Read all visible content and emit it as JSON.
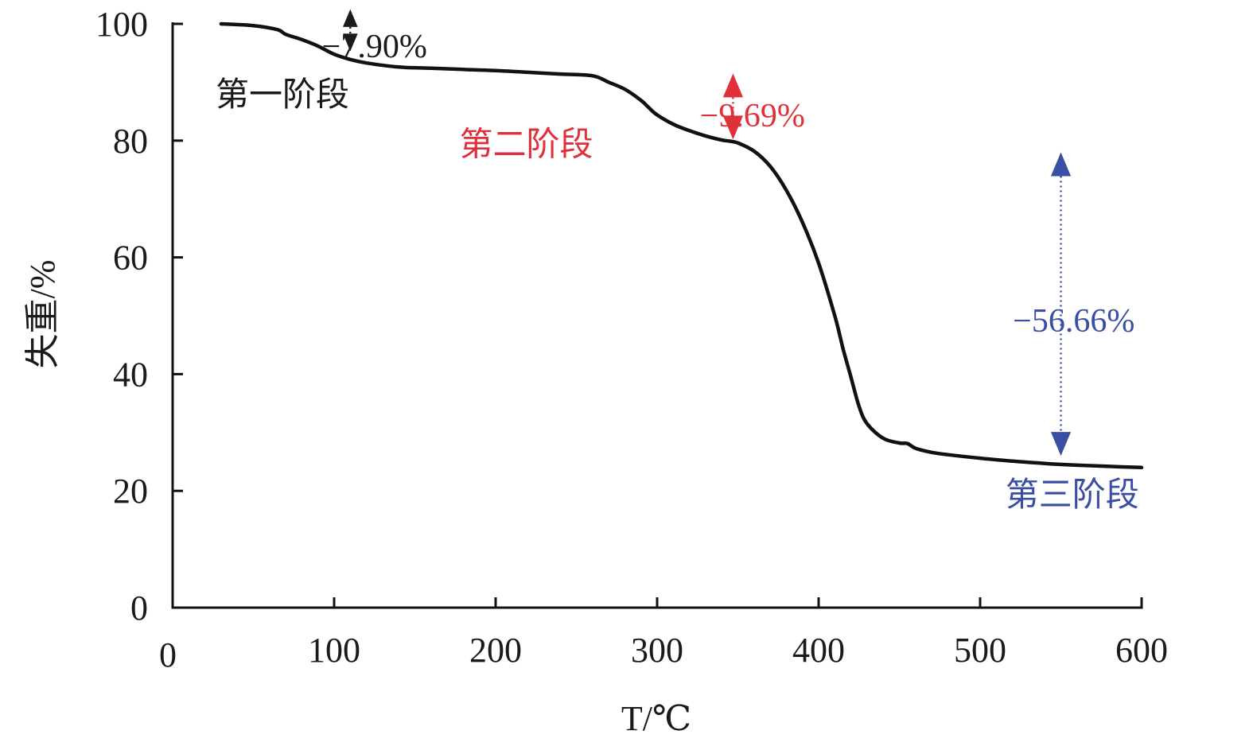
{
  "chart_data": {
    "type": "line",
    "xlabel": "T/℃",
    "ylabel": "失重/%",
    "xlim": [
      0,
      600
    ],
    "ylim": [
      0,
      100
    ],
    "x_ticks": [
      0,
      100,
      200,
      300,
      400,
      500,
      600
    ],
    "y_ticks": [
      0,
      20,
      40,
      60,
      80,
      100
    ],
    "grid": false,
    "series": [
      {
        "color": "#111111",
        "x": [
          30,
          50,
          65,
          70,
          80,
          90,
          100,
          110,
          120,
          140,
          160,
          180,
          200,
          220,
          240,
          260,
          270,
          280,
          290,
          295,
          300,
          310,
          320,
          330,
          340,
          345,
          350,
          360,
          370,
          380,
          390,
          400,
          410,
          415,
          420,
          425,
          430,
          440,
          450,
          455,
          460,
          470,
          480,
          500,
          520,
          540,
          560,
          580,
          600
        ],
        "y": [
          100,
          99.7,
          99.0,
          98.2,
          97.3,
          96.2,
          94.8,
          93.9,
          93.3,
          92.6,
          92.4,
          92.2,
          92.0,
          91.7,
          91.4,
          91.1,
          90.0,
          88.8,
          86.9,
          85.6,
          84.4,
          82.8,
          81.7,
          80.8,
          80.1,
          79.9,
          79.6,
          78.2,
          75.6,
          71.5,
          66.0,
          59.0,
          50.0,
          44.5,
          39.5,
          34.5,
          31.5,
          29.0,
          28.2,
          28.1,
          27.3,
          26.6,
          26.2,
          25.6,
          25.1,
          24.7,
          24.4,
          24.2,
          24.0
        ]
      }
    ],
    "annotations": [
      {
        "label": "第一阶段",
        "x": 68,
        "y": 88,
        "color": "#1a1a1a"
      },
      {
        "label": "第二阶段",
        "x": 219,
        "y": 79.5,
        "color": "#e0303a"
      },
      {
        "label": "第三阶段",
        "x": 557,
        "y": 19.5,
        "color": "#3a4fa3"
      },
      {
        "label": "−7.90%",
        "x": 125,
        "y": 96.3,
        "color": "#1a1a1a"
      },
      {
        "label": "−9.69%",
        "x": 359,
        "y": 84.5,
        "color": "#e0303a"
      },
      {
        "label": "−56.66%",
        "x": 558,
        "y": 49.3,
        "color": "#3a4fa3"
      }
    ],
    "arrows": [
      {
        "x": 110,
        "y_top": 102.5,
        "y_bottom": 95.3,
        "color": "#1a1a1a"
      },
      {
        "x": 347,
        "y_top": 91.5,
        "y_bottom": 80.2,
        "color": "#e0303a"
      },
      {
        "x": 550,
        "y_top": 78.0,
        "y_bottom": 26.0,
        "color": "#3a4fa3"
      }
    ]
  }
}
